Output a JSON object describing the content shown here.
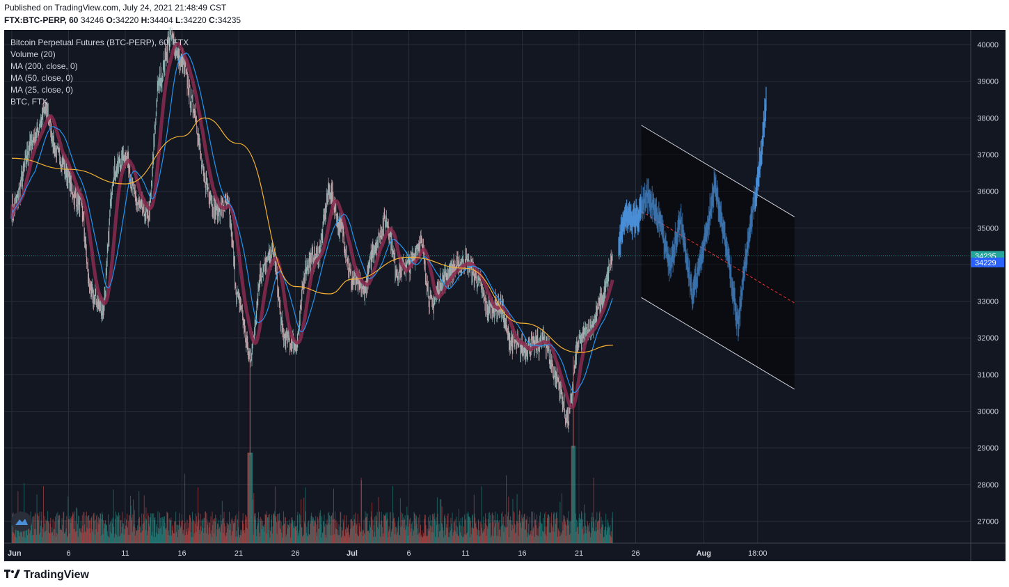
{
  "header": {
    "published": "Published on TradingView.com, July 24, 2021 21:48:49 CST",
    "symbol": "FTX:BTC-PERP, 60",
    "last": "34246",
    "o_label": "O:",
    "o": "34220",
    "h_label": "H:",
    "h": "34404",
    "l_label": "L:",
    "l": "34220",
    "c_label": "C:",
    "c": "34235"
  },
  "legend": {
    "title": "Bitcoin Perpetual Futures (BTC-PERP), 60, FTX",
    "volume": "Volume (20)",
    "ma200": "MA (200, close, 0)",
    "ma50": "MA (50, close, 0)",
    "ma25": "MA (25, close, 0)",
    "compare": "BTC, FTX"
  },
  "branding": {
    "logo_text": "TradingView",
    "logo_icon": "tradingview-logo-icon"
  },
  "colors": {
    "background": "#131722",
    "grid": "#2a2e39",
    "up": "#26a69a",
    "down": "#ef5350",
    "ma200": "#f5b22f",
    "ma50": "#2196f3",
    "ma25": "#8a2a4e",
    "projection": "#4a90d9",
    "channel_line": "#d1d4dc",
    "channel_mid": "#e53935",
    "last_price_badge": "#26a69a",
    "last_price2_badge": "#2962ff"
  },
  "chart_data": {
    "type": "candlestick",
    "y_axis": {
      "min": 26400,
      "max": 40400,
      "ticks": [
        "40000",
        "39000",
        "38000",
        "37000",
        "36000",
        "35000",
        "34000",
        "33000",
        "32000",
        "31000",
        "30000",
        "29000",
        "28000",
        "27000"
      ]
    },
    "x_axis": {
      "tick_labels": [
        "Jun",
        "6",
        "11",
        "16",
        "21",
        "26",
        "Jul",
        "6",
        "11",
        "16",
        "21",
        "26",
        "Aug",
        "18:00"
      ]
    },
    "price_labels": {
      "last": "34235",
      "compare": "34229"
    },
    "price_keypoints": [
      [
        "2021-06-01",
        35500
      ],
      [
        "2021-06-03",
        37500
      ],
      [
        "2021-06-04",
        38200
      ],
      [
        "2021-06-05",
        37000
      ],
      [
        "2021-06-07",
        35700
      ],
      [
        "2021-06-08",
        33200
      ],
      [
        "2021-06-09",
        32800
      ],
      [
        "2021-06-10",
        36500
      ],
      [
        "2021-06-11",
        37000
      ],
      [
        "2021-06-12",
        35700
      ],
      [
        "2021-06-13",
        35300
      ],
      [
        "2021-06-14",
        39000
      ],
      [
        "2021-06-15",
        40200
      ],
      [
        "2021-06-16",
        39500
      ],
      [
        "2021-06-17",
        38300
      ],
      [
        "2021-06-18",
        36300
      ],
      [
        "2021-06-19",
        35500
      ],
      [
        "2021-06-20",
        35600
      ],
      [
        "2021-06-21",
        33000
      ],
      [
        "2021-06-22",
        31500
      ],
      [
        "2021-06-23",
        33800
      ],
      [
        "2021-06-24",
        34300
      ],
      [
        "2021-06-25",
        32000
      ],
      [
        "2021-06-26",
        31800
      ],
      [
        "2021-06-27",
        34000
      ],
      [
        "2021-06-28",
        34300
      ],
      [
        "2021-06-29",
        36000
      ],
      [
        "2021-06-30",
        35000
      ],
      [
        "2021-07-01",
        33600
      ],
      [
        "2021-07-02",
        33300
      ],
      [
        "2021-07-03",
        34500
      ],
      [
        "2021-07-04",
        35200
      ],
      [
        "2021-07-05",
        33800
      ],
      [
        "2021-07-06",
        34000
      ],
      [
        "2021-07-07",
        34600
      ],
      [
        "2021-07-08",
        32900
      ],
      [
        "2021-07-09",
        33600
      ],
      [
        "2021-07-10",
        33900
      ],
      [
        "2021-07-11",
        34100
      ],
      [
        "2021-07-12",
        33600
      ],
      [
        "2021-07-13",
        32800
      ],
      [
        "2021-07-14",
        32900
      ],
      [
        "2021-07-15",
        31900
      ],
      [
        "2021-07-16",
        31700
      ],
      [
        "2021-07-17",
        31800
      ],
      [
        "2021-07-18",
        31900
      ],
      [
        "2021-07-19",
        30900
      ],
      [
        "2021-07-20",
        29800
      ],
      [
        "2021-07-21",
        31900
      ],
      [
        "2021-07-22",
        32300
      ],
      [
        "2021-07-23",
        33000
      ],
      [
        "2021-07-24",
        34200
      ]
    ],
    "ma200_keypoints": [
      [
        "2021-06-01",
        36900
      ],
      [
        "2021-06-06",
        36600
      ],
      [
        "2021-06-11",
        36200
      ],
      [
        "2021-06-16",
        37500
      ],
      [
        "2021-06-18",
        38000
      ],
      [
        "2021-06-21",
        37300
      ],
      [
        "2021-06-26",
        33400
      ],
      [
        "2021-06-29",
        33200
      ],
      [
        "2021-07-01",
        33600
      ],
      [
        "2021-07-06",
        34200
      ],
      [
        "2021-07-11",
        33900
      ],
      [
        "2021-07-16",
        32400
      ],
      [
        "2021-07-21",
        31600
      ],
      [
        "2021-07-24",
        31800
      ]
    ],
    "projection": {
      "label": "BTC, FTX",
      "keypoints": [
        [
          "2021-07-24T12:00",
          34400
        ],
        [
          "2021-07-25",
          35300
        ],
        [
          "2021-07-26",
          35200
        ],
        [
          "2021-07-27",
          35900
        ],
        [
          "2021-07-28",
          35300
        ],
        [
          "2021-07-29",
          34000
        ],
        [
          "2021-07-30",
          35200
        ],
        [
          "2021-07-31",
          33100
        ],
        [
          "2021-08-01",
          34500
        ],
        [
          "2021-08-02",
          36200
        ],
        [
          "2021-08-03",
          34500
        ],
        [
          "2021-08-04",
          32400
        ],
        [
          "2021-08-05",
          34800
        ],
        [
          "2021-08-06",
          36800
        ],
        [
          "2021-08-06T12:00",
          38500
        ]
      ]
    },
    "channel": {
      "upper": [
        [
          "2021-07-26T12:00",
          37800
        ],
        [
          "2021-08-09",
          35300
        ]
      ],
      "lower": [
        [
          "2021-07-26T12:00",
          33100
        ],
        [
          "2021-08-09",
          30600
        ]
      ],
      "mid": [
        [
          "2021-07-26T12:00",
          35450
        ],
        [
          "2021-08-09",
          32950
        ]
      ]
    },
    "series": [
      {
        "name": "Volume (20)",
        "kind": "histogram"
      },
      {
        "name": "MA (200, close, 0)",
        "kind": "line"
      },
      {
        "name": "MA (50, close, 0)",
        "kind": "line"
      },
      {
        "name": "MA (25, close, 0)",
        "kind": "line"
      }
    ],
    "grid": true,
    "legend_placement": "top-left"
  }
}
